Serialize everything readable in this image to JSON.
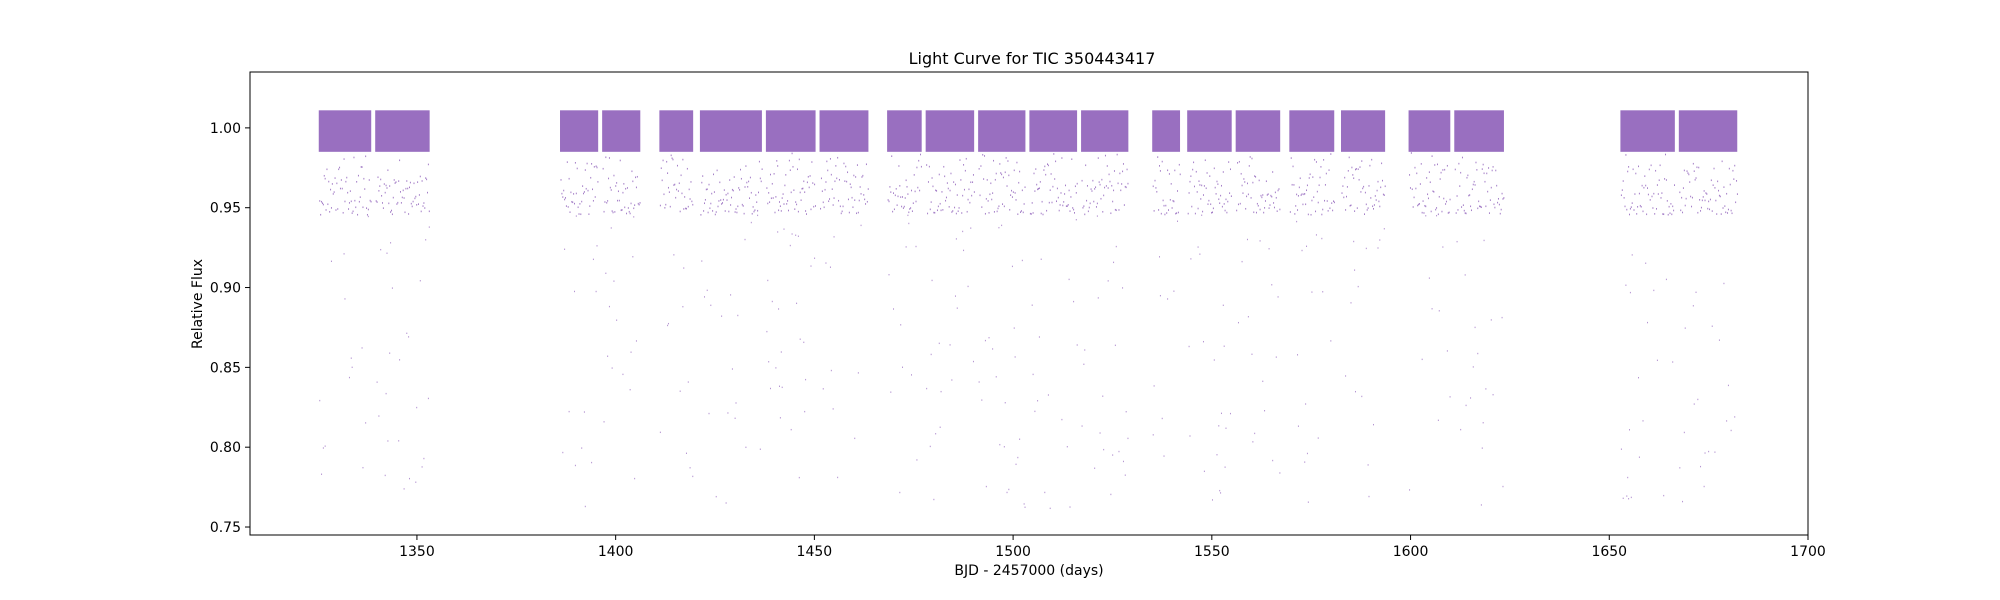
{
  "chart_data": {
    "type": "scatter",
    "title": "Light Curve for TIC 350443417",
    "xlabel": "BJD - 2457000 (days)",
    "ylabel": "Relative Flux",
    "xlim": [
      1308,
      1700
    ],
    "ylim": [
      0.745,
      1.035
    ],
    "xticks": [
      1350,
      1400,
      1450,
      1500,
      1550,
      1600,
      1650,
      1700
    ],
    "xtick_labels": [
      "1350",
      "1400",
      "1450",
      "1500",
      "1550",
      "1600",
      "1650",
      "1700"
    ],
    "yticks": [
      0.75,
      0.8,
      0.85,
      0.9,
      0.95,
      1.0
    ],
    "ytick_labels": [
      "0.75",
      "0.80",
      "0.85",
      "0.90",
      "0.95",
      "1.00"
    ],
    "grid": false,
    "legend": "none",
    "color": "#9467bd",
    "baseline_flux": 1.0,
    "transit_min_flux": 0.762,
    "segments": [
      {
        "start": 1325.3,
        "end": 1338.5
      },
      {
        "start": 1339.5,
        "end": 1353.2
      },
      {
        "start": 1386.0,
        "end": 1395.6
      },
      {
        "start": 1396.6,
        "end": 1406.2
      },
      {
        "start": 1411.0,
        "end": 1419.5
      },
      {
        "start": 1421.2,
        "end": 1436.8
      },
      {
        "start": 1437.8,
        "end": 1450.3
      },
      {
        "start": 1451.3,
        "end": 1463.6
      },
      {
        "start": 1468.3,
        "end": 1477.0
      },
      {
        "start": 1478.0,
        "end": 1490.2
      },
      {
        "start": 1491.2,
        "end": 1503.1
      },
      {
        "start": 1504.1,
        "end": 1516.1
      },
      {
        "start": 1517.1,
        "end": 1529.0
      },
      {
        "start": 1535.0,
        "end": 1542.0
      },
      {
        "start": 1543.8,
        "end": 1555.0
      },
      {
        "start": 1556.0,
        "end": 1567.2
      },
      {
        "start": 1569.5,
        "end": 1580.8
      },
      {
        "start": 1582.5,
        "end": 1593.6
      },
      {
        "start": 1599.5,
        "end": 1610.0
      },
      {
        "start": 1611.0,
        "end": 1623.5
      },
      {
        "start": 1652.8,
        "end": 1666.5
      },
      {
        "start": 1667.5,
        "end": 1682.2
      }
    ]
  }
}
